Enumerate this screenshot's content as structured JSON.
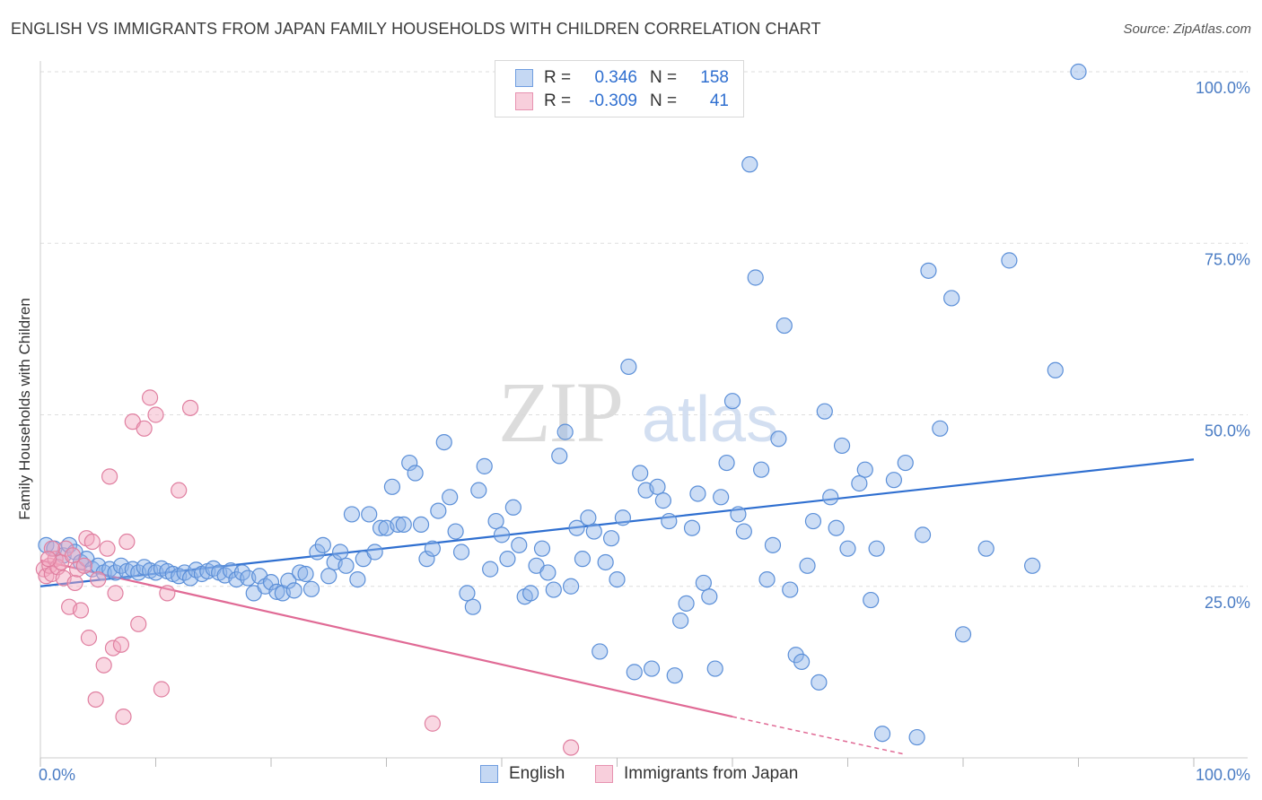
{
  "title": "ENGLISH VS IMMIGRANTS FROM JAPAN FAMILY HOUSEHOLDS WITH CHILDREN CORRELATION CHART",
  "source": "Source: ZipAtlas.com",
  "watermark": {
    "zip": "ZIP",
    "atlas": "atlas"
  },
  "legend": {
    "rows": [
      {
        "r_label": "R =",
        "r_value": "0.346",
        "n_label": "N =",
        "n_value": "158",
        "color": "#8fb4e8"
      },
      {
        "r_label": "R =",
        "r_value": "-0.309",
        "n_label": "N =",
        "n_value": "41",
        "color": "#f1a6bf"
      }
    ]
  },
  "bottom_legend": [
    {
      "label": "English",
      "color": "#8fb4e8"
    },
    {
      "label": "Immigrants from Japan",
      "color": "#f1a6bf"
    }
  ],
  "chart_data": {
    "type": "scatter",
    "title": "ENGLISH VS IMMIGRANTS FROM JAPAN FAMILY HOUSEHOLDS WITH CHILDREN CORRELATION CHART",
    "xlabel": "",
    "ylabel": "Family Households with Children",
    "xlim": [
      0,
      100
    ],
    "ylim": [
      0,
      100
    ],
    "x_tick_labels": [
      {
        "value": 0,
        "label": "0.0%"
      },
      {
        "value": 100,
        "label": "100.0%"
      }
    ],
    "y_tick_labels": [
      {
        "value": 25,
        "label": "25.0%"
      },
      {
        "value": 50,
        "label": "50.0%"
      },
      {
        "value": 75,
        "label": "75.0%"
      },
      {
        "value": 100,
        "label": "100.0%"
      }
    ],
    "grid": "horizontal dashed",
    "series": [
      {
        "name": "English",
        "color": "#8fb4e8",
        "stroke": "#5b8fd8",
        "trend": {
          "x": [
            0,
            100
          ],
          "y": [
            25.0,
            43.5
          ],
          "color": "#2f6fd0"
        },
        "points": [
          [
            0.5,
            31.0
          ],
          [
            1.2,
            30.5
          ],
          [
            2.0,
            29.5
          ],
          [
            2.5,
            31.0
          ],
          [
            3.0,
            30.0
          ],
          [
            3.5,
            28.5
          ],
          [
            4.0,
            29.0
          ],
          [
            4.5,
            27.5
          ],
          [
            5.0,
            28.0
          ],
          [
            5.5,
            27.0
          ],
          [
            6.0,
            27.5
          ],
          [
            6.5,
            27.0
          ],
          [
            7.0,
            28.0
          ],
          [
            7.5,
            27.2
          ],
          [
            8.0,
            27.5
          ],
          [
            8.5,
            27.0
          ],
          [
            9.0,
            27.8
          ],
          [
            9.5,
            27.3
          ],
          [
            10.0,
            27.0
          ],
          [
            10.5,
            27.6
          ],
          [
            11.0,
            27.2
          ],
          [
            11.5,
            26.8
          ],
          [
            12.0,
            26.5
          ],
          [
            12.5,
            27.0
          ],
          [
            13.0,
            26.2
          ],
          [
            13.5,
            27.4
          ],
          [
            14.0,
            26.8
          ],
          [
            14.5,
            27.2
          ],
          [
            15.0,
            27.6
          ],
          [
            15.5,
            27.0
          ],
          [
            16.0,
            26.6
          ],
          [
            16.5,
            27.3
          ],
          [
            17.0,
            26.0
          ],
          [
            17.5,
            27.0
          ],
          [
            18.0,
            26.2
          ],
          [
            18.5,
            24.0
          ],
          [
            19.0,
            26.5
          ],
          [
            19.5,
            25.0
          ],
          [
            20.0,
            25.6
          ],
          [
            20.5,
            24.2
          ],
          [
            21.0,
            24.0
          ],
          [
            21.5,
            25.8
          ],
          [
            22.0,
            24.4
          ],
          [
            22.5,
            27.0
          ],
          [
            23.0,
            26.8
          ],
          [
            23.5,
            24.6
          ],
          [
            24.0,
            30.0
          ],
          [
            24.5,
            31.0
          ],
          [
            25.0,
            26.5
          ],
          [
            25.5,
            28.5
          ],
          [
            26.0,
            30.0
          ],
          [
            26.5,
            28.0
          ],
          [
            27.0,
            35.5
          ],
          [
            27.5,
            26.0
          ],
          [
            28.0,
            29.0
          ],
          [
            28.5,
            35.5
          ],
          [
            29.0,
            30.0
          ],
          [
            29.5,
            33.5
          ],
          [
            30.0,
            33.5
          ],
          [
            30.5,
            39.5
          ],
          [
            31.0,
            34.0
          ],
          [
            31.5,
            34.0
          ],
          [
            32.0,
            43.0
          ],
          [
            32.5,
            41.5
          ],
          [
            33.0,
            34.0
          ],
          [
            33.5,
            29.0
          ],
          [
            34.0,
            30.5
          ],
          [
            34.5,
            36.0
          ],
          [
            35.0,
            46.0
          ],
          [
            35.5,
            38.0
          ],
          [
            36.0,
            33.0
          ],
          [
            36.5,
            30.0
          ],
          [
            37.0,
            24.0
          ],
          [
            37.5,
            22.0
          ],
          [
            38.0,
            39.0
          ],
          [
            38.5,
            42.5
          ],
          [
            39.0,
            27.5
          ],
          [
            39.5,
            34.5
          ],
          [
            40.0,
            32.5
          ],
          [
            40.5,
            29.0
          ],
          [
            41.0,
            36.5
          ],
          [
            41.5,
            31.0
          ],
          [
            42.0,
            23.5
          ],
          [
            42.5,
            24.0
          ],
          [
            43.0,
            28.0
          ],
          [
            43.5,
            30.5
          ],
          [
            44.0,
            27.0
          ],
          [
            44.5,
            24.5
          ],
          [
            45.0,
            44.0
          ],
          [
            45.5,
            47.5
          ],
          [
            46.0,
            25.0
          ],
          [
            46.5,
            33.5
          ],
          [
            47.0,
            29.0
          ],
          [
            47.5,
            35.0
          ],
          [
            48.0,
            33.0
          ],
          [
            48.5,
            15.5
          ],
          [
            49.0,
            28.5
          ],
          [
            49.5,
            32.0
          ],
          [
            50.0,
            26.0
          ],
          [
            50.5,
            35.0
          ],
          [
            51.0,
            57.0
          ],
          [
            51.5,
            12.5
          ],
          [
            52.0,
            41.5
          ],
          [
            52.5,
            39.0
          ],
          [
            53.0,
            13.0
          ],
          [
            53.5,
            39.5
          ],
          [
            54.0,
            37.5
          ],
          [
            54.5,
            34.5
          ],
          [
            55.0,
            12.0
          ],
          [
            55.5,
            20.0
          ],
          [
            56.0,
            22.5
          ],
          [
            56.5,
            33.5
          ],
          [
            57.0,
            38.5
          ],
          [
            57.5,
            25.5
          ],
          [
            58.0,
            23.5
          ],
          [
            58.5,
            13.0
          ],
          [
            59.0,
            38.0
          ],
          [
            59.5,
            43.0
          ],
          [
            60.0,
            52.0
          ],
          [
            60.5,
            35.5
          ],
          [
            61.0,
            33.0
          ],
          [
            61.5,
            86.5
          ],
          [
            62.0,
            70.0
          ],
          [
            62.5,
            42.0
          ],
          [
            63.0,
            26.0
          ],
          [
            63.5,
            31.0
          ],
          [
            64.0,
            46.5
          ],
          [
            64.5,
            63.0
          ],
          [
            65.0,
            24.5
          ],
          [
            65.5,
            15.0
          ],
          [
            66.0,
            14.0
          ],
          [
            66.5,
            28.0
          ],
          [
            67.0,
            34.5
          ],
          [
            67.5,
            11.0
          ],
          [
            68.0,
            50.5
          ],
          [
            68.5,
            38.0
          ],
          [
            69.0,
            33.5
          ],
          [
            69.5,
            45.5
          ],
          [
            70.0,
            30.5
          ],
          [
            71.0,
            40.0
          ],
          [
            71.5,
            42.0
          ],
          [
            72.0,
            23.0
          ],
          [
            72.5,
            30.5
          ],
          [
            73.0,
            3.5
          ],
          [
            74.0,
            40.5
          ],
          [
            75.0,
            43.0
          ],
          [
            76.0,
            3.0
          ],
          [
            76.5,
            32.5
          ],
          [
            77.0,
            71.0
          ],
          [
            78.0,
            48.0
          ],
          [
            79.0,
            67.0
          ],
          [
            80.0,
            18.0
          ],
          [
            82.0,
            30.5
          ],
          [
            84.0,
            72.5
          ],
          [
            86.0,
            28.0
          ],
          [
            88.0,
            56.5
          ],
          [
            90.0,
            100.0
          ]
        ]
      },
      {
        "name": "Immigrants from Japan",
        "color": "#f1a6bf",
        "stroke": "#e07fa0",
        "trend": {
          "x": [
            0,
            60
          ],
          "y": [
            28.8,
            6.0
          ],
          "dash_to": [
            75,
            0.5
          ],
          "color": "#e06a95"
        },
        "points": [
          [
            0.3,
            27.5
          ],
          [
            0.5,
            26.5
          ],
          [
            0.8,
            28.0
          ],
          [
            1.0,
            26.8
          ],
          [
            1.3,
            29.0
          ],
          [
            1.5,
            27.8
          ],
          [
            1.8,
            28.5
          ],
          [
            2.0,
            26.2
          ],
          [
            2.2,
            30.5
          ],
          [
            2.5,
            22.0
          ],
          [
            2.8,
            29.5
          ],
          [
            3.0,
            25.5
          ],
          [
            3.2,
            27.5
          ],
          [
            3.5,
            21.5
          ],
          [
            4.0,
            32.0
          ],
          [
            4.2,
            17.5
          ],
          [
            4.5,
            31.5
          ],
          [
            4.8,
            8.5
          ],
          [
            5.0,
            26.0
          ],
          [
            5.5,
            13.5
          ],
          [
            5.8,
            30.5
          ],
          [
            6.0,
            41.0
          ],
          [
            6.3,
            16.0
          ],
          [
            6.5,
            24.0
          ],
          [
            7.0,
            16.5
          ],
          [
            7.2,
            6.0
          ],
          [
            7.5,
            31.5
          ],
          [
            8.0,
            49.0
          ],
          [
            8.5,
            19.5
          ],
          [
            9.0,
            48.0
          ],
          [
            9.5,
            52.5
          ],
          [
            10.0,
            50.0
          ],
          [
            10.5,
            10.0
          ],
          [
            11.0,
            24.0
          ],
          [
            12.0,
            39.0
          ],
          [
            13.0,
            51.0
          ],
          [
            34.0,
            5.0
          ],
          [
            46.0,
            1.5
          ],
          [
            1.0,
            30.5
          ],
          [
            0.7,
            29.0
          ],
          [
            3.8,
            28.0
          ]
        ]
      }
    ]
  }
}
